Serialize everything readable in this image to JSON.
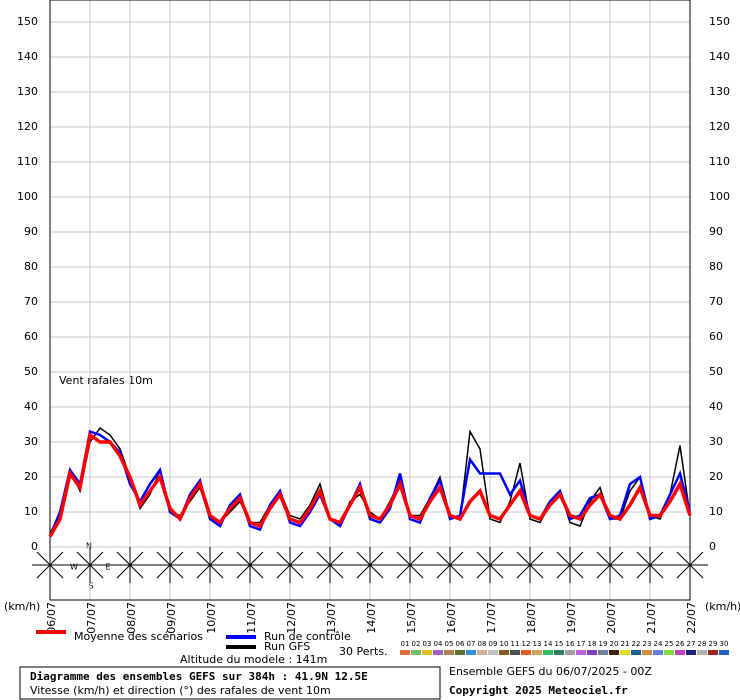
{
  "chart_data": {
    "type": "line",
    "annotation": "Vent rafales 10m",
    "unit_left": "(km/h)",
    "unit_right": "(km/h)",
    "xticks": [
      "06/07",
      "07/07",
      "08/07",
      "09/07",
      "10/07",
      "11/07",
      "12/07",
      "13/07",
      "14/07",
      "15/07",
      "16/07",
      "17/07",
      "18/07",
      "19/07",
      "20/07",
      "21/07",
      "22/07"
    ],
    "ylim": [
      0,
      150
    ],
    "yticks": [
      0,
      10,
      20,
      30,
      40,
      50,
      60,
      70,
      80,
      90,
      100,
      110,
      120,
      130,
      140,
      150
    ],
    "grid": true,
    "series": [
      {
        "name": "Moyenne des scénarios",
        "color": "#ff0000",
        "values": [
          3,
          8,
          21,
          17,
          32,
          30,
          30,
          26,
          20,
          12,
          16,
          20,
          11,
          8,
          14,
          18,
          9,
          7,
          11,
          14,
          7,
          6,
          11,
          15,
          8,
          7,
          11,
          16,
          8,
          7,
          12,
          17,
          9,
          8,
          12,
          18,
          9,
          8,
          13,
          17,
          9,
          8,
          13,
          16,
          9,
          8,
          12,
          16,
          9,
          8,
          12,
          15,
          9,
          8,
          12,
          15,
          9,
          8,
          12,
          17,
          9,
          9,
          13,
          18,
          9
        ]
      },
      {
        "name": "Run de contrôle",
        "color": "#0000ff",
        "values": [
          3,
          10,
          22,
          18,
          33,
          32,
          30,
          27,
          18,
          13,
          18,
          22,
          10,
          8,
          15,
          19,
          8,
          6,
          12,
          15,
          6,
          5,
          12,
          16,
          7,
          6,
          10,
          15,
          8,
          6,
          12,
          18,
          8,
          7,
          11,
          21,
          8,
          7,
          14,
          19,
          8,
          9,
          25,
          21,
          21,
          21,
          15,
          19,
          9,
          8,
          13,
          16,
          8,
          9,
          14,
          15,
          8,
          9,
          18,
          20,
          8,
          9,
          15,
          21,
          10
        ]
      },
      {
        "name": "Run GFS",
        "color": "#000000",
        "values": [
          4,
          9,
          22,
          16,
          30,
          34,
          32,
          28,
          20,
          11,
          15,
          22,
          10,
          9,
          13,
          17,
          8,
          7,
          10,
          13,
          7,
          7,
          12,
          16,
          9,
          8,
          12,
          18,
          8,
          6,
          13,
          15,
          10,
          8,
          13,
          19,
          9,
          9,
          14,
          20,
          9,
          8,
          33,
          28,
          8,
          7,
          13,
          24,
          8,
          7,
          12,
          16,
          7,
          6,
          13,
          17,
          8,
          8,
          16,
          20,
          9,
          8,
          15,
          29,
          9
        ]
      }
    ],
    "perturbations_label": "30 Perts.",
    "perturbations": [
      {
        "name": "01",
        "color": "#e07030"
      },
      {
        "name": "02",
        "color": "#70c070"
      },
      {
        "name": "03",
        "color": "#e0c020"
      },
      {
        "name": "04",
        "color": "#a060c0"
      },
      {
        "name": "05",
        "color": "#b08050"
      },
      {
        "name": "06",
        "color": "#607030"
      },
      {
        "name": "07",
        "color": "#3090e0"
      },
      {
        "name": "08",
        "color": "#d0b090"
      },
      {
        "name": "09",
        "color": "#c0c0c0"
      },
      {
        "name": "10",
        "color": "#806020"
      },
      {
        "name": "11",
        "color": "#505050"
      },
      {
        "name": "12",
        "color": "#e06020"
      },
      {
        "name": "13",
        "color": "#d0a060"
      },
      {
        "name": "14",
        "color": "#30c060"
      },
      {
        "name": "15",
        "color": "#308060"
      },
      {
        "name": "16",
        "color": "#a0a0a0"
      },
      {
        "name": "17",
        "color": "#c060e0"
      },
      {
        "name": "18",
        "color": "#8040c0"
      },
      {
        "name": "19",
        "color": "#7080a0"
      },
      {
        "name": "20",
        "color": "#402010"
      },
      {
        "name": "21",
        "color": "#e0e020"
      },
      {
        "name": "22",
        "color": "#206090"
      },
      {
        "name": "23",
        "color": "#d09040"
      },
      {
        "name": "24",
        "color": "#6080e0"
      },
      {
        "name": "25",
        "color": "#80e040"
      },
      {
        "name": "26",
        "color": "#c040c0"
      },
      {
        "name": "27",
        "color": "#202080"
      },
      {
        "name": "28",
        "color": "#b0b0b0"
      },
      {
        "name": "29",
        "color": "#a02020"
      },
      {
        "name": "30",
        "color": "#2060c0"
      }
    ],
    "compass": [
      "N",
      "W",
      "E",
      "S"
    ],
    "altitude": "Altitude du modele : 141m",
    "title": "Diagramme des ensembles GEFS sur 384h : 41.9N 12.5E",
    "subtitle": "Vitesse (km/h) et direction (°) des rafales de vent 10m",
    "run_info": "Ensemble GEFS du 06/07/2025 - 00Z",
    "copyright": "Copyright 2025 Meteociel.fr"
  }
}
